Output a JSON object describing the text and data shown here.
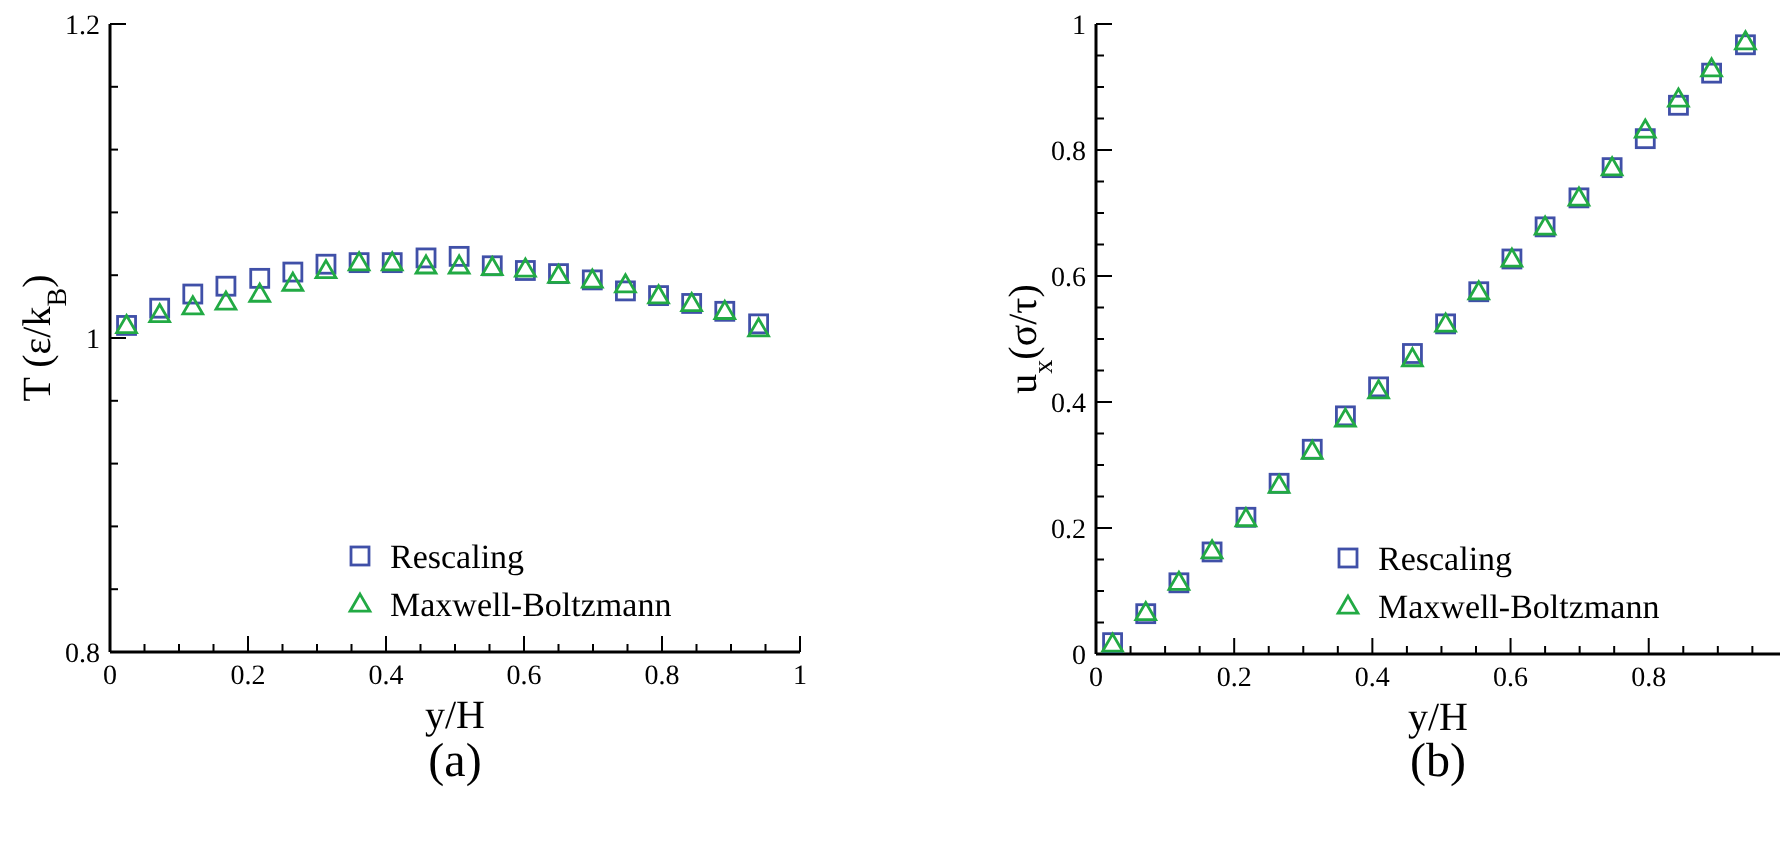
{
  "chart_data": [
    {
      "type": "scatter",
      "xlabel": "y/H",
      "ylabel": "T (ε/k$_{B}$)",
      "annotations": [
        "(a)"
      ],
      "legend": "bottom",
      "grid": false,
      "x": [
        0.024,
        0.072,
        0.12,
        0.168,
        0.217,
        0.265,
        0.313,
        0.361,
        0.409,
        0.458,
        0.506,
        0.554,
        0.602,
        0.65,
        0.699,
        0.747,
        0.795,
        0.843,
        0.891,
        0.94
      ],
      "xlim": [
        0,
        1
      ],
      "xticks": [
        0,
        {
          "value": 0.05,
          "label": null
        },
        {
          "value": 0.1,
          "label": null
        },
        {
          "value": 0.15,
          "label": null
        },
        0.2,
        {
          "value": 0.25,
          "label": null
        },
        {
          "value": 0.3,
          "label": null
        },
        {
          "value": 0.35,
          "label": null
        },
        0.4,
        {
          "value": 0.45,
          "label": null
        },
        {
          "value": 0.5,
          "label": null
        },
        {
          "value": 0.55,
          "label": null
        },
        0.6,
        {
          "value": 0.65,
          "label": null
        },
        {
          "value": 0.7,
          "label": null
        },
        {
          "value": 0.75,
          "label": null
        },
        0.8,
        {
          "value": 0.85,
          "label": null
        },
        {
          "value": 0.9,
          "label": null
        },
        {
          "value": 0.95,
          "label": null
        },
        1
      ],
      "ylim": [
        0.8,
        1.2
      ],
      "yticks": [
        0.8,
        {
          "value": 0.84,
          "label": null
        },
        {
          "value": 0.88,
          "label": null
        },
        {
          "value": 0.92,
          "label": null
        },
        {
          "value": 0.96,
          "label": null
        },
        1,
        {
          "value": 1.04,
          "label": null
        },
        {
          "value": 1.08,
          "label": null
        },
        {
          "value": 1.12,
          "label": null
        },
        {
          "value": 1.16,
          "label": null
        },
        1.2
      ],
      "series": [
        {
          "name": "Rescaling",
          "color": "#4050a8",
          "marker": "square",
          "values": [
            1.008,
            1.019,
            1.028,
            1.033,
            1.038,
            1.042,
            1.047,
            1.048,
            1.048,
            1.051,
            1.052,
            1.046,
            1.043,
            1.041,
            1.037,
            1.03,
            1.027,
            1.022,
            1.017,
            1.009
          ]
        },
        {
          "name": "Maxwell-Boltzmann",
          "color": "#22aa44",
          "marker": "triangle",
          "values": [
            1.008,
            1.015,
            1.02,
            1.023,
            1.028,
            1.035,
            1.043,
            1.048,
            1.048,
            1.046,
            1.046,
            1.045,
            1.044,
            1.04,
            1.037,
            1.034,
            1.027,
            1.022,
            1.017,
            1.006
          ]
        }
      ]
    },
    {
      "type": "scatter",
      "xlabel": "y/H",
      "ylabel": "u$_{x}$(σ/τ)",
      "annotations": [
        "(b)"
      ],
      "legend": "bottom right",
      "grid": false,
      "x": [
        0.024,
        0.072,
        0.12,
        0.168,
        0.217,
        0.265,
        0.313,
        0.361,
        0.409,
        0.458,
        0.506,
        0.554,
        0.602,
        0.65,
        0.699,
        0.747,
        0.795,
        0.843,
        0.891,
        0.94
      ],
      "xlim": [
        0,
        0.99
      ],
      "xticks": [
        0,
        {
          "value": 0.05,
          "label": null
        },
        {
          "value": 0.1,
          "label": null
        },
        {
          "value": 0.15,
          "label": null
        },
        0.2,
        {
          "value": 0.25,
          "label": null
        },
        {
          "value": 0.3,
          "label": null
        },
        {
          "value": 0.35,
          "label": null
        },
        0.4,
        {
          "value": 0.45,
          "label": null
        },
        {
          "value": 0.5,
          "label": null
        },
        {
          "value": 0.55,
          "label": null
        },
        0.6,
        {
          "value": 0.65,
          "label": null
        },
        {
          "value": 0.7,
          "label": null
        },
        {
          "value": 0.75,
          "label": null
        },
        0.8,
        {
          "value": 0.85,
          "label": null
        },
        {
          "value": 0.9,
          "label": null
        },
        {
          "value": 0.95,
          "label": null
        }
      ],
      "ylim": [
        0,
        1
      ],
      "yticks": [
        0,
        {
          "value": 0.05,
          "label": null
        },
        {
          "value": 0.1,
          "label": null
        },
        {
          "value": 0.15,
          "label": null
        },
        0.2,
        {
          "value": 0.25,
          "label": null
        },
        {
          "value": 0.3,
          "label": null
        },
        {
          "value": 0.35,
          "label": null
        },
        0.4,
        {
          "value": 0.45,
          "label": null
        },
        {
          "value": 0.5,
          "label": null
        },
        {
          "value": 0.55,
          "label": null
        },
        0.6,
        {
          "value": 0.65,
          "label": null
        },
        {
          "value": 0.7,
          "label": null
        },
        {
          "value": 0.75,
          "label": null
        },
        0.8,
        {
          "value": 0.85,
          "label": null
        },
        {
          "value": 0.9,
          "label": null
        },
        {
          "value": 0.95,
          "label": null
        },
        1
      ],
      "series": [
        {
          "name": "Rescaling",
          "color": "#4050a8",
          "marker": "square",
          "values": [
            0.018,
            0.064,
            0.113,
            0.162,
            0.217,
            0.271,
            0.325,
            0.378,
            0.424,
            0.477,
            0.524,
            0.575,
            0.627,
            0.678,
            0.724,
            0.772,
            0.818,
            0.871,
            0.922,
            0.967
          ]
        },
        {
          "name": "Maxwell-Boltzmann",
          "color": "#22aa44",
          "marker": "triangle",
          "values": [
            0.016,
            0.066,
            0.114,
            0.164,
            0.215,
            0.268,
            0.322,
            0.373,
            0.418,
            0.469,
            0.524,
            0.575,
            0.627,
            0.678,
            0.724,
            0.772,
            0.832,
            0.881,
            0.929,
            0.972
          ]
        }
      ]
    }
  ]
}
